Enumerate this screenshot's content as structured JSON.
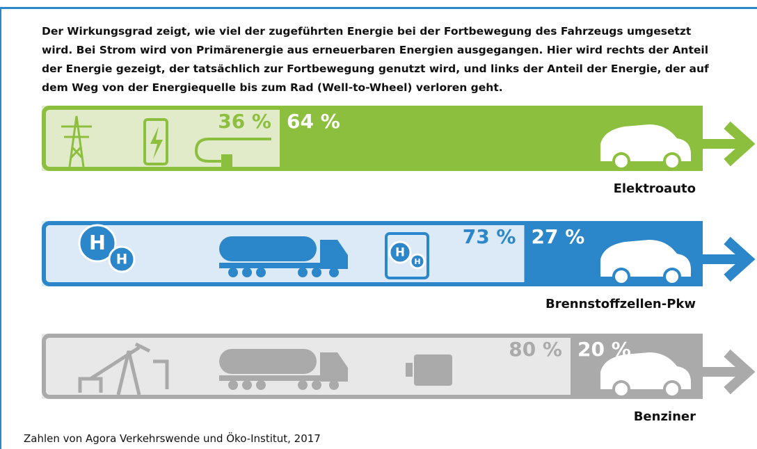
{
  "chart_data": {
    "type": "bar100",
    "title": "Der Wirkungsgrad zeigt, wie viel der zugeführten Energie bei der Fortbewegung des Fahrzeugs umgesetzt wird. Bei Strom wird von Primärenergie aus erneuerbaren Energien ausgegangen. Hier wird rechts der Anteil der Energie gezeigt, der tatsächlich zur Fortbewegung genutzt wird, und links der Anteil der Energie, der auf dem Weg von der Energiequelle bis zum Rad (Well-to-Wheel) verloren geht.",
    "categories": [
      "Elektroauto",
      "Brennstoffzellen-Pkw",
      "Benziner"
    ],
    "colors": [
      "#8dbf3e",
      "#2b87c9",
      "#aaaaaa"
    ],
    "light_colors": [
      "#e1ebca",
      "#dce9f6",
      "#e8e8e8"
    ],
    "series": [
      {
        "values": [
          36,
          73,
          80
        ],
        "value_labels": [
          "36 %",
          "73 %",
          "80 %"
        ]
      },
      {
        "values": [
          64,
          27,
          20
        ],
        "value_labels": [
          "64 %",
          "27 %",
          "20 %"
        ]
      }
    ],
    "xlim": [
      0,
      100
    ],
    "source": "Zahlen von Agora Verkehrswende und Öko-Institut, 2017"
  }
}
